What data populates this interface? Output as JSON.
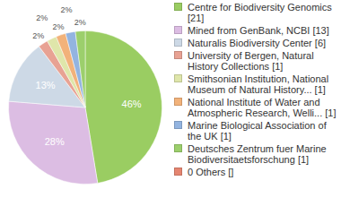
{
  "chart_data": {
    "type": "pie",
    "categories": [
      "Centre for Biodiversity Genomics [21]",
      "Mined from GenBank, NCBI [13]",
      "Naturalis Biodiversity Center [6]",
      "University of Bergen, Natural History Collections [1]",
      "Smithsonian Institution, National Museum of Natural History... [1]",
      "National Institute of Water and Atmospheric Research, Welli... [1]",
      "Marine Biological Association of the UK [1]",
      "Deutsches Zentrum fuer Marine Biodiversitaetsforschung [1]",
      "0 Others []"
    ],
    "values": [
      46,
      28,
      13,
      2,
      2,
      2,
      2,
      2,
      0
    ],
    "value_labels": [
      "46%",
      "28%",
      "13%",
      "2%",
      "2%",
      "2%",
      "2%",
      "2%",
      null
    ],
    "colors": [
      "#9acd62",
      "#dcbde3",
      "#cdd9e6",
      "#e8a293",
      "#dfe6aa",
      "#f2b27a",
      "#93b4e0",
      "#9ccf6c",
      "#e58570"
    ],
    "data_labels": true,
    "legend": "right"
  }
}
